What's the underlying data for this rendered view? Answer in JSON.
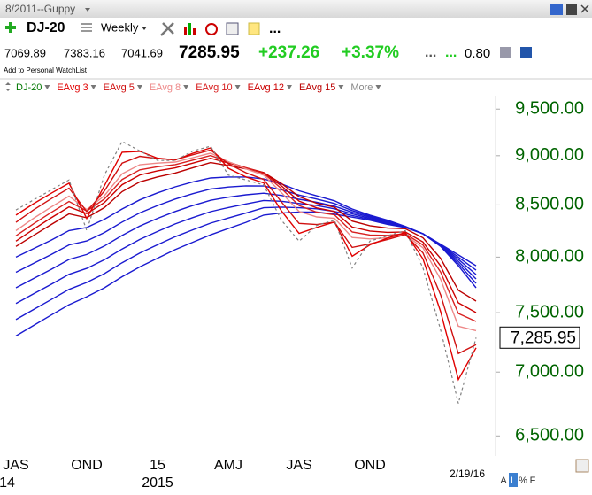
{
  "window": {
    "title": "8/2011--Guppy",
    "symbol": "DJ-20",
    "period": "Weekly",
    "more": "...",
    "quote": {
      "open": "7069.89",
      "high": "7383.16",
      "low": "7041.69",
      "last": "7285.95",
      "change": "+237.26",
      "change_pct": "+3.37%",
      "dots1": "...",
      "dots2": "...",
      "ratio": "0.80"
    },
    "watchlist": "Add to Personal WatchList",
    "footer": [
      "A",
      "L",
      "%",
      "F"
    ]
  },
  "chart_data": {
    "type": "line",
    "log_scale": true,
    "grid": false,
    "legend_more": "More",
    "categories": [
      "JAS",
      null,
      null,
      null,
      "OND",
      null,
      null,
      null,
      "15",
      null,
      null,
      null,
      "AMJ",
      null,
      null,
      null,
      "JAS",
      null,
      null,
      null,
      "OND",
      null,
      null,
      null,
      null,
      null,
      "2/19/16"
    ],
    "x_sublabels": [
      "14",
      null,
      null,
      null,
      null,
      null,
      null,
      null,
      "2015",
      null,
      null,
      null,
      null,
      null,
      null,
      null,
      null,
      null,
      null,
      null,
      null,
      null,
      null,
      null,
      null,
      null,
      null
    ],
    "ylim": [
      6350,
      9650
    ],
    "yticks": [
      {
        "value": 6500,
        "label": "6,500.00"
      },
      {
        "value": 7000,
        "label": "7,000.00"
      },
      {
        "value": 7500,
        "label": "7,500.00"
      },
      {
        "value": 8000,
        "label": "8,000.00"
      },
      {
        "value": 8500,
        "label": "8,500.00"
      },
      {
        "value": 9000,
        "label": "9,000.00"
      },
      {
        "value": 9500,
        "label": "9,500.00"
      }
    ],
    "series": [
      {
        "name": "DJ-20",
        "color": "#808080",
        "label_color": "#007700",
        "dashed": true,
        "values": [
          8450,
          8550,
          8650,
          8750,
          8250,
          8800,
          9150,
          9050,
          8950,
          8950,
          9050,
          9100,
          8800,
          8750,
          8700,
          8350,
          8150,
          8300,
          8350,
          7900,
          8150,
          8200,
          8250,
          7900,
          7350,
          6750,
          7285.95
        ],
        "value_labels": [
          null,
          null,
          null,
          null,
          null,
          null,
          null,
          null,
          null,
          null,
          null,
          null,
          null,
          null,
          null,
          null,
          null,
          null,
          null,
          null,
          null,
          null,
          null,
          null,
          null,
          null,
          "7,285.95"
        ]
      },
      {
        "name": "EAvg 3",
        "color": "#e00000",
        "values": [
          8400,
          8512,
          8616,
          8717,
          8367,
          8692,
          9036,
          9046,
          8974,
          8956,
          9026,
          9082,
          8870,
          8780,
          8720,
          8442,
          8223,
          8281,
          8333,
          8008,
          8115,
          8179,
          8232,
          7983,
          7508,
          6940,
          7200
        ]
      },
      {
        "name": "EAvg 5",
        "color": "#d01010",
        "values": [
          8330,
          8452,
          8562,
          8667,
          8435,
          8638,
          8923,
          8994,
          8970,
          8959,
          9010,
          9060,
          8915,
          8823,
          8755,
          8530,
          8319,
          8308,
          8331,
          8091,
          8124,
          8166,
          8213,
          8039,
          7656,
          7152,
          7226
        ]
      },
      {
        "name": "EAvg 8",
        "color": "#ee8888",
        "values": [
          8250,
          8369,
          8480,
          8587,
          8454,
          8591,
          8812,
          8906,
          8923,
          8934,
          8980,
          9027,
          8937,
          8863,
          8799,
          8622,
          8436,
          8382,
          8369,
          8184,
          8171,
          8182,
          8209,
          8087,
          7796,
          7383,
          7345
        ]
      },
      {
        "name": "EAvg 10",
        "color": "#d82020",
        "values": [
          8200,
          8316,
          8427,
          8534,
          8440,
          8559,
          8755,
          8853,
          8885,
          8907,
          8954,
          9002,
          8935,
          8874,
          8816,
          8662,
          8493,
          8429,
          8403,
          8237,
          8208,
          8205,
          8220,
          8114,
          7861,
          7493,
          7424
        ]
      },
      {
        "name": "EAvg 12",
        "color": "#cc0000",
        "values": [
          8150,
          8264,
          8374,
          8481,
          8415,
          8524,
          8702,
          8801,
          8843,
          8873,
          8923,
          8973,
          8924,
          8875,
          8825,
          8690,
          8537,
          8470,
          8436,
          8284,
          8246,
          8233,
          8238,
          8142,
          7917,
          7586,
          7501
        ]
      },
      {
        "name": "EAvg 15",
        "color": "#bb0000",
        "values": [
          8100,
          8205,
          8309,
          8412,
          8374,
          8474,
          8632,
          8730,
          8781,
          8821,
          8875,
          8928,
          8898,
          8863,
          8825,
          8714,
          8582,
          8516,
          8477,
          8342,
          8297,
          8274,
          8268,
          8182,
          7987,
          7698,
          7602
        ]
      },
      {
        "color": "#1a1ad0",
        "values": [
          8000,
          8080,
          8160,
          8250,
          8280,
          8360,
          8460,
          8550,
          8620,
          8680,
          8730,
          8770,
          8780,
          8780,
          8760,
          8710,
          8640,
          8590,
          8540,
          8460,
          8400,
          8350,
          8290,
          8220,
          8120,
          8020,
          7920
        ]
      },
      {
        "color": "#1a1ad0",
        "values": [
          7860,
          7942,
          8024,
          8114,
          8152,
          8232,
          8332,
          8422,
          8494,
          8558,
          8612,
          8658,
          8678,
          8690,
          8688,
          8652,
          8598,
          8558,
          8514,
          8444,
          8390,
          8342,
          8288,
          8220,
          8116,
          8000,
          7880
        ]
      },
      {
        "color": "#1a1ad0",
        "values": [
          7720,
          7804,
          7888,
          7978,
          8024,
          8104,
          8204,
          8294,
          8368,
          8436,
          8494,
          8546,
          8576,
          8600,
          8616,
          8594,
          8556,
          8526,
          8488,
          8428,
          8380,
          8334,
          8286,
          8220,
          8112,
          7980,
          7840
        ]
      },
      {
        "color": "#1a1ad0",
        "values": [
          7580,
          7666,
          7752,
          7842,
          7896,
          7976,
          8076,
          8166,
          8242,
          8314,
          8376,
          8434,
          8474,
          8510,
          8544,
          8536,
          8514,
          8494,
          8462,
          8412,
          8370,
          8326,
          8284,
          8220,
          8108,
          7960,
          7800
        ]
      },
      {
        "color": "#1a1ad0",
        "values": [
          7440,
          7528,
          7616,
          7706,
          7768,
          7848,
          7948,
          8038,
          8116,
          8192,
          8258,
          8322,
          8372,
          8420,
          8472,
          8478,
          8472,
          8462,
          8436,
          8396,
          8360,
          8318,
          8282,
          8220,
          8104,
          7940,
          7760
        ]
      },
      {
        "color": "#1a1ad0",
        "values": [
          7300,
          7390,
          7480,
          7570,
          7640,
          7720,
          7820,
          7910,
          7990,
          8070,
          8140,
          8210,
          8270,
          8330,
          8400,
          8420,
          8430,
          8430,
          8410,
          8380,
          8350,
          8310,
          8280,
          8220,
          8100,
          7920,
          7720
        ]
      }
    ]
  }
}
